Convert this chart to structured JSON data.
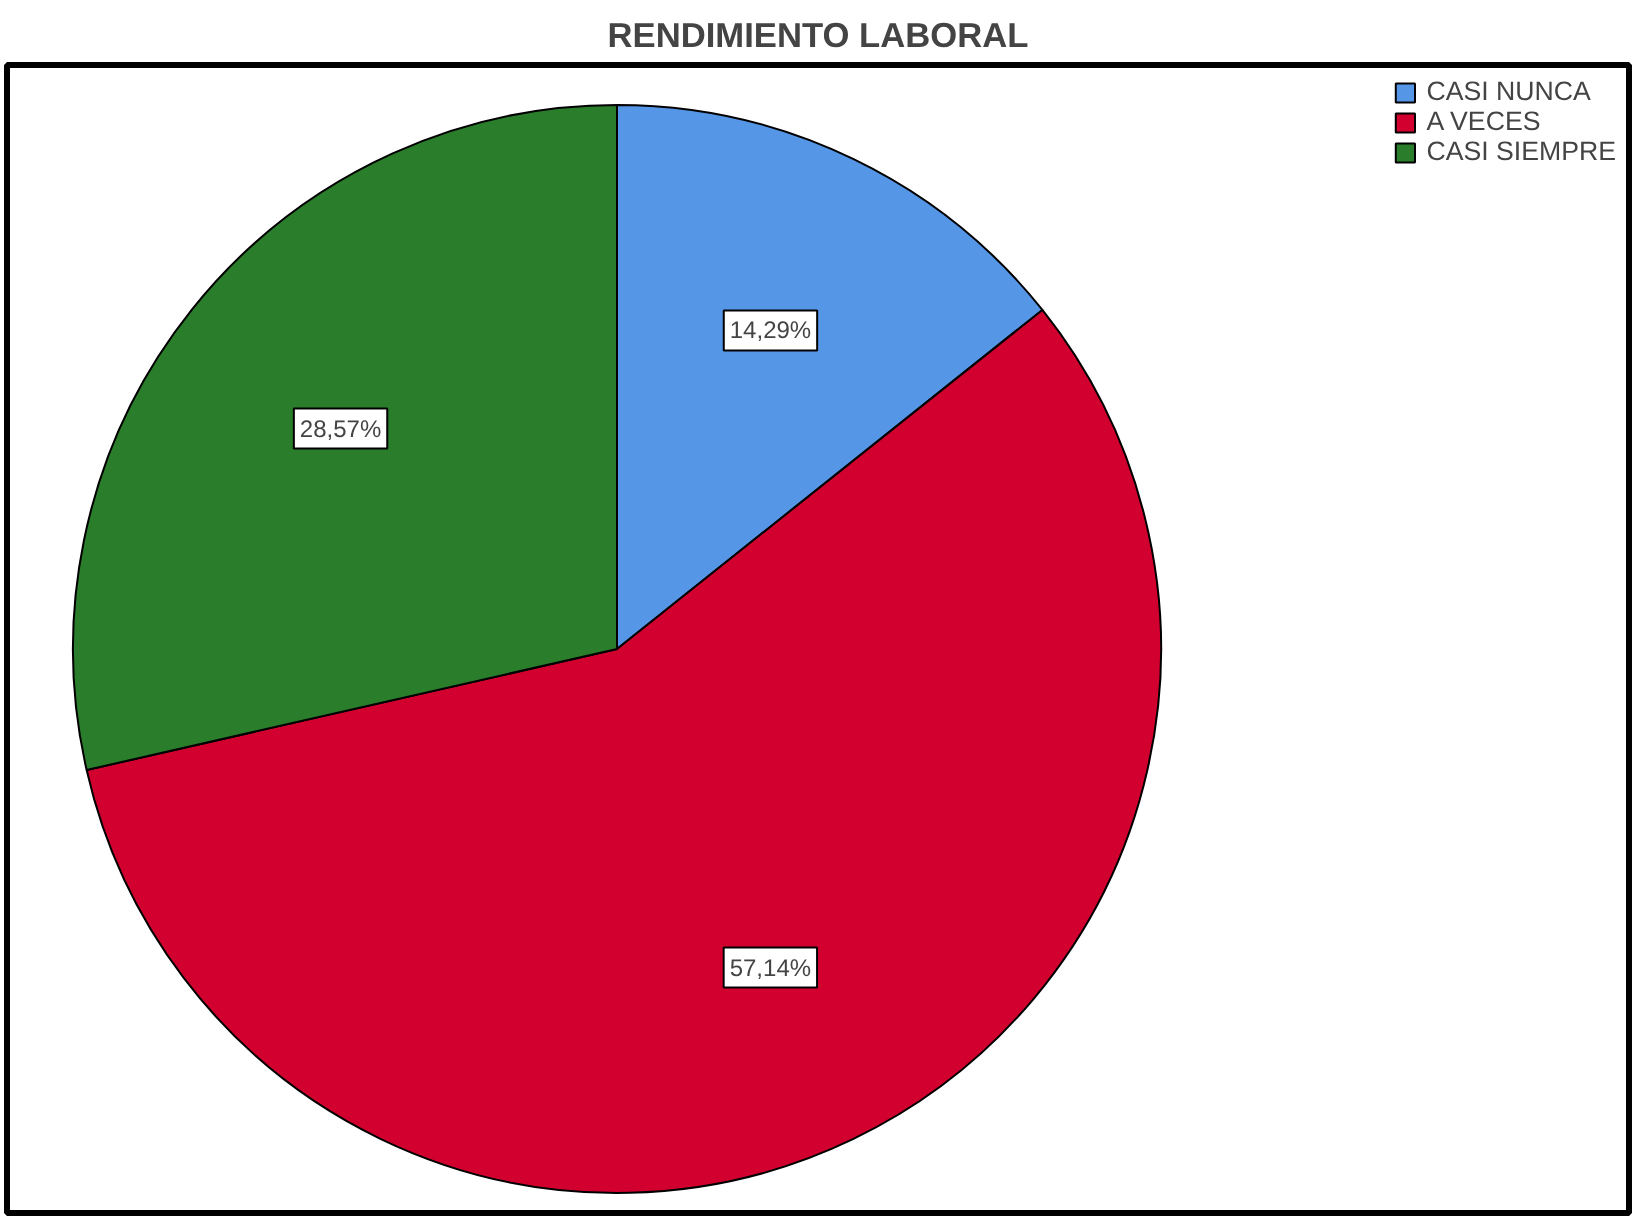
{
  "chart_data": {
    "type": "pie",
    "title": "RENDIMIENTO LABORAL",
    "categories": [
      "CASI NUNCA",
      "A VECES",
      "CASI SIEMPRE"
    ],
    "values": [
      14.29,
      57.14,
      28.57
    ],
    "value_labels": [
      "14,29%",
      "57,14%",
      "28,57%"
    ],
    "colors": [
      "#5596e6",
      "#d2002f",
      "#2a7d2a"
    ],
    "legend": "top right"
  }
}
